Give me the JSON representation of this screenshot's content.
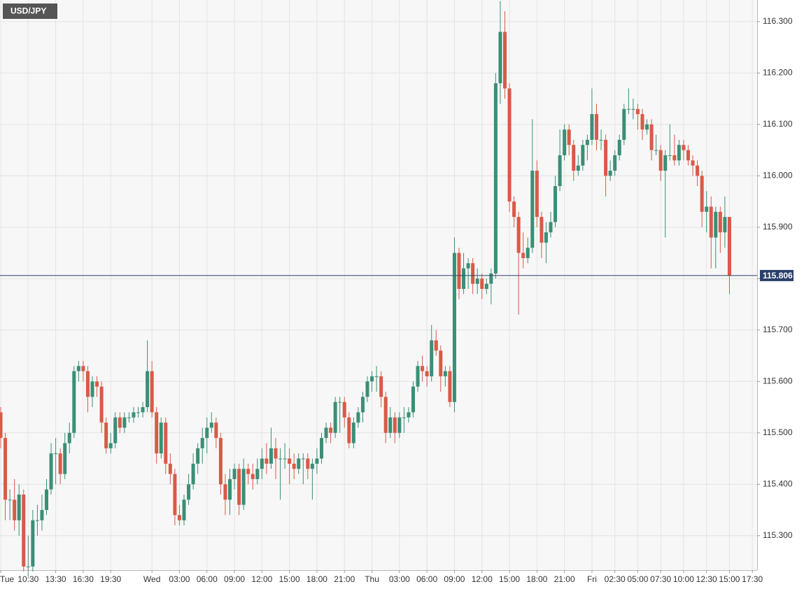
{
  "chart_data": {
    "type": "candlestick",
    "title": "USD/JPY",
    "categories": [
      "Tue",
      null,
      null,
      null,
      null,
      null,
      "10:30",
      null,
      null,
      null,
      null,
      null,
      "13:30",
      null,
      null,
      null,
      null,
      null,
      "16:30",
      null,
      null,
      null,
      null,
      null,
      "19:30",
      null,
      null,
      null,
      null,
      null,
      null,
      null,
      null,
      "Wed",
      null,
      null,
      null,
      null,
      null,
      "03:00",
      null,
      null,
      null,
      null,
      null,
      "06:00",
      null,
      null,
      null,
      null,
      null,
      "09:00",
      null,
      null,
      null,
      null,
      null,
      "12:00",
      null,
      null,
      null,
      null,
      null,
      "15:00",
      null,
      null,
      null,
      null,
      null,
      "18:00",
      null,
      null,
      null,
      null,
      null,
      "21:00",
      null,
      null,
      null,
      null,
      null,
      "Thu",
      null,
      null,
      null,
      null,
      null,
      "03:00",
      null,
      null,
      null,
      null,
      null,
      "06:00",
      null,
      null,
      null,
      null,
      null,
      "09:00",
      null,
      null,
      null,
      null,
      null,
      "12:00",
      null,
      null,
      null,
      null,
      null,
      "15:00",
      null,
      null,
      null,
      null,
      null,
      "18:00",
      null,
      null,
      null,
      null,
      null,
      "21:00",
      null,
      null,
      null,
      null,
      null,
      "Fri",
      null,
      null,
      null,
      null,
      "02:30",
      null,
      null,
      null,
      null,
      "05:00",
      null,
      null,
      null,
      null,
      "07:30",
      null,
      null,
      null,
      null,
      "10:00",
      null,
      null,
      null,
      null,
      "12:30",
      null,
      null,
      null,
      null,
      "15:00",
      null,
      null,
      null,
      null,
      "17:30"
    ],
    "open": [
      115.54,
      115.49,
      115.37,
      115.37,
      115.33,
      115.38,
      115.24,
      115.24,
      115.33,
      115.33,
      115.35,
      115.39,
      115.46,
      115.46,
      115.42,
      115.48,
      115.5,
      115.62,
      115.63,
      115.62,
      115.57,
      115.6,
      115.59,
      115.52,
      115.47,
      115.48,
      115.53,
      115.51,
      115.53,
      115.53,
      115.54,
      115.54,
      115.55,
      115.62,
      115.54,
      115.46,
      115.52,
      115.44,
      115.42,
      115.34,
      115.33,
      115.37,
      115.4,
      115.44,
      115.47,
      115.49,
      115.51,
      115.52,
      115.49,
      115.4,
      115.37,
      115.41,
      115.43,
      115.36,
      115.43,
      115.42,
      115.41,
      115.43,
      115.45,
      115.44,
      115.47,
      115.45,
      115.45,
      115.45,
      115.44,
      115.43,
      115.45,
      115.45,
      115.43,
      115.44,
      115.45,
      115.49,
      115.51,
      115.5,
      115.56,
      115.56,
      115.53,
      115.48,
      115.52,
      115.54,
      115.57,
      115.6,
      115.61,
      115.61,
      115.57,
      115.5,
      115.53,
      115.5,
      115.53,
      115.53,
      115.54,
      115.59,
      115.63,
      115.62,
      115.61,
      115.68,
      115.66,
      115.61,
      115.62,
      115.56,
      115.85,
      115.78,
      115.82,
      115.83,
      115.79,
      115.8,
      115.78,
      115.79,
      115.81,
      116.18,
      116.28,
      116.17,
      115.95,
      115.92,
      115.85,
      115.84,
      115.86,
      116.01,
      115.92,
      115.87,
      115.89,
      115.91,
      115.98,
      116.04,
      116.09,
      116.06,
      116.01,
      116.02,
      116.06,
      116.07,
      116.12,
      116.07,
      116.07,
      116.0,
      116.01,
      116.04,
      116.07,
      116.13,
      116.13,
      116.13,
      116.12,
      116.09,
      116.1,
      116.05,
      116.05,
      116.01,
      116.04,
      116.04,
      116.03,
      116.06,
      116.05,
      116.03,
      116.02,
      116.0,
      115.93,
      115.94,
      115.88,
      115.93,
      115.89,
      115.92,
      null,
      null,
      null,
      null,
      null
    ],
    "high": [
      115.55,
      115.5,
      115.39,
      115.41,
      115.4,
      115.39,
      115.3,
      115.35,
      115.36,
      115.38,
      115.41,
      115.48,
      115.49,
      115.47,
      115.5,
      115.52,
      115.63,
      115.64,
      115.64,
      115.63,
      115.61,
      115.61,
      115.6,
      115.53,
      115.5,
      115.54,
      115.54,
      115.54,
      115.54,
      115.55,
      115.55,
      115.56,
      115.68,
      115.64,
      115.55,
      115.53,
      115.53,
      115.46,
      115.43,
      115.36,
      115.38,
      115.42,
      115.46,
      115.48,
      115.51,
      115.53,
      115.54,
      115.53,
      115.5,
      115.42,
      115.43,
      115.44,
      115.44,
      115.45,
      115.44,
      115.44,
      115.45,
      115.47,
      115.48,
      115.51,
      115.49,
      115.47,
      115.48,
      115.47,
      115.46,
      115.46,
      115.46,
      115.46,
      115.45,
      115.47,
      115.5,
      115.52,
      115.52,
      115.57,
      115.57,
      115.57,
      115.54,
      115.53,
      115.55,
      115.58,
      115.61,
      115.62,
      115.63,
      115.62,
      115.58,
      115.55,
      115.54,
      115.54,
      115.55,
      115.55,
      115.6,
      115.64,
      115.65,
      115.63,
      115.71,
      115.7,
      115.67,
      115.63,
      115.63,
      115.88,
      115.86,
      115.85,
      115.84,
      115.84,
      115.82,
      115.81,
      115.8,
      115.82,
      116.2,
      116.34,
      116.32,
      116.18,
      115.96,
      115.93,
      115.89,
      115.88,
      116.11,
      116.03,
      115.93,
      115.91,
      115.93,
      116.0,
      116.09,
      116.1,
      116.1,
      116.07,
      116.04,
      116.07,
      116.08,
      116.17,
      116.14,
      116.09,
      116.08,
      116.03,
      116.05,
      116.08,
      116.14,
      116.17,
      116.15,
      116.14,
      116.13,
      116.11,
      116.11,
      116.08,
      116.06,
      116.05,
      116.1,
      116.08,
      116.07,
      116.07,
      116.06,
      116.04,
      116.03,
      116.01,
      115.97,
      115.96,
      115.94,
      115.94,
      115.96,
      115.92,
      null,
      null,
      null,
      null,
      null
    ],
    "low": [
      115.47,
      115.33,
      115.33,
      115.31,
      115.3,
      115.23,
      115.22,
      115.23,
      115.3,
      115.31,
      115.34,
      115.38,
      115.4,
      115.4,
      115.41,
      115.46,
      115.49,
      115.6,
      115.6,
      115.54,
      115.55,
      115.57,
      115.5,
      115.46,
      115.46,
      115.47,
      115.5,
      115.5,
      115.52,
      115.52,
      115.53,
      115.53,
      115.54,
      115.53,
      115.44,
      115.45,
      115.42,
      115.4,
      115.32,
      115.32,
      115.32,
      115.36,
      115.39,
      115.42,
      115.44,
      115.46,
      115.5,
      115.47,
      115.38,
      115.34,
      115.34,
      115.39,
      115.34,
      115.35,
      115.4,
      115.39,
      115.4,
      115.41,
      115.42,
      115.43,
      115.41,
      115.37,
      115.43,
      115.4,
      115.41,
      115.42,
      115.4,
      115.41,
      115.37,
      115.42,
      115.44,
      115.48,
      115.48,
      115.49,
      115.5,
      115.51,
      115.47,
      115.47,
      115.51,
      115.52,
      115.56,
      115.58,
      115.58,
      115.55,
      115.48,
      115.49,
      115.48,
      115.49,
      115.5,
      115.52,
      115.53,
      115.58,
      115.6,
      115.59,
      115.6,
      115.65,
      115.58,
      115.59,
      115.55,
      115.54,
      115.76,
      115.77,
      115.78,
      115.77,
      115.77,
      115.76,
      115.77,
      115.75,
      115.8,
      116.14,
      116.15,
      115.93,
      115.9,
      115.73,
      115.82,
      115.83,
      115.85,
      115.9,
      115.84,
      115.83,
      115.88,
      115.9,
      115.97,
      116.03,
      116.04,
      115.99,
      116.0,
      116.01,
      116.03,
      116.06,
      116.05,
      116.05,
      115.96,
      115.99,
      116.0,
      116.03,
      116.06,
      116.12,
      116.11,
      116.09,
      116.07,
      116.08,
      116.03,
      116.04,
      115.99,
      115.88,
      116.03,
      116.02,
      116.02,
      116.03,
      116.02,
      116.0,
      115.98,
      115.9,
      115.89,
      115.82,
      115.82,
      115.85,
      115.86,
      115.77,
      null,
      null,
      null,
      null,
      null
    ],
    "close": [
      115.49,
      115.37,
      115.37,
      115.33,
      115.38,
      115.24,
      115.24,
      115.33,
      115.33,
      115.35,
      115.39,
      115.46,
      115.46,
      115.42,
      115.48,
      115.5,
      115.62,
      115.63,
      115.62,
      115.57,
      115.6,
      115.59,
      115.52,
      115.47,
      115.48,
      115.53,
      115.51,
      115.53,
      115.53,
      115.54,
      115.54,
      115.55,
      115.62,
      115.54,
      115.46,
      115.52,
      115.44,
      115.42,
      115.34,
      115.33,
      115.37,
      115.4,
      115.44,
      115.47,
      115.49,
      115.51,
      115.52,
      115.49,
      115.4,
      115.37,
      115.41,
      115.43,
      115.36,
      115.43,
      115.42,
      115.41,
      115.43,
      115.45,
      115.44,
      115.47,
      115.45,
      115.45,
      115.45,
      115.44,
      115.43,
      115.45,
      115.45,
      115.43,
      115.44,
      115.45,
      115.49,
      115.51,
      115.5,
      115.56,
      115.56,
      115.53,
      115.48,
      115.52,
      115.54,
      115.57,
      115.6,
      115.61,
      115.61,
      115.57,
      115.5,
      115.53,
      115.5,
      115.53,
      115.53,
      115.54,
      115.59,
      115.63,
      115.62,
      115.61,
      115.68,
      115.66,
      115.61,
      115.62,
      115.56,
      115.85,
      115.78,
      115.82,
      115.83,
      115.79,
      115.8,
      115.78,
      115.79,
      115.81,
      116.18,
      116.28,
      116.17,
      115.95,
      115.92,
      115.85,
      115.84,
      115.86,
      116.01,
      115.92,
      115.87,
      115.89,
      115.91,
      115.98,
      116.04,
      116.09,
      116.06,
      116.01,
      116.02,
      116.06,
      116.07,
      116.12,
      116.07,
      116.07,
      116.0,
      116.01,
      116.04,
      116.07,
      116.13,
      116.13,
      116.13,
      116.12,
      116.09,
      116.1,
      116.05,
      116.05,
      116.01,
      116.04,
      116.04,
      116.03,
      116.06,
      116.05,
      116.03,
      116.02,
      116.0,
      115.93,
      115.94,
      115.88,
      115.93,
      115.89,
      115.92,
      115.806,
      null,
      null,
      null,
      null,
      null
    ],
    "up_color": "#3a8f76",
    "down_color": "#d85a48",
    "last_price": {
      "value": 115.806,
      "label": "115.806"
    },
    "ylim": [
      115.233,
      116.342
    ],
    "yticks": [
      {
        "value": 115.3,
        "label": "115.300"
      },
      {
        "value": 115.4,
        "label": "115.400"
      },
      {
        "value": 115.5,
        "label": "115.500"
      },
      {
        "value": 115.6,
        "label": "115.600"
      },
      {
        "value": 115.7,
        "label": "115.700"
      },
      {
        "value": 115.8,
        "label": "115.800"
      },
      {
        "value": 115.9,
        "label": "115.900"
      },
      {
        "value": 116.0,
        "label": "116.000"
      },
      {
        "value": 116.1,
        "label": "116.100"
      },
      {
        "value": 116.2,
        "label": "116.200"
      },
      {
        "value": 116.3,
        "label": "116.300"
      }
    ],
    "grid": true
  }
}
